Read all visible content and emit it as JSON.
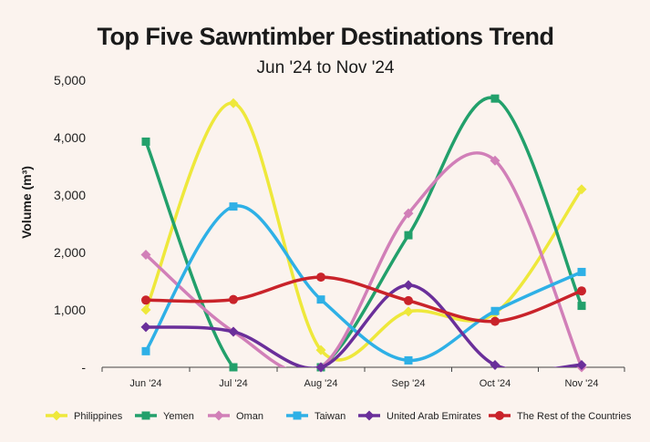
{
  "chart_data": {
    "type": "line",
    "title": "Top Five Sawntimber Destinations Trend",
    "subtitle": "Jun '24 to Nov '24",
    "ylabel": "Volume (m³)",
    "xlabel": "",
    "categories": [
      "Jun '24",
      "Jul '24",
      "Aug '24",
      "Sep '24",
      "Oct '24",
      "Nov '24"
    ],
    "ylim": [
      0,
      5000
    ],
    "yticks": [
      0,
      1000,
      2000,
      3000,
      4000,
      5000
    ],
    "ytick_labels": [
      "-",
      "1,000",
      "2,000",
      "3,000",
      "4,000",
      "5,000"
    ],
    "legend_position": "bottom",
    "grid": false,
    "series": [
      {
        "name": "Philippines",
        "color": "#eee83b",
        "marker": "diamond",
        "values": [
          1000,
          4600,
          300,
          970,
          940,
          3100
        ]
      },
      {
        "name": "Yemen",
        "color": "#22a06b",
        "marker": "square",
        "values": [
          3930,
          0,
          0,
          2300,
          4680,
          1070
        ]
      },
      {
        "name": "Oman",
        "color": "#d17fb8",
        "marker": "diamond",
        "values": [
          1960,
          620,
          0,
          2680,
          3600,
          0
        ]
      },
      {
        "name": "Taiwan",
        "color": "#2eb0e6",
        "marker": "square",
        "values": [
          280,
          2800,
          1180,
          120,
          980,
          1660
        ]
      },
      {
        "name": "United Arab Emirates",
        "color": "#6a2f9a",
        "marker": "diamond",
        "values": [
          700,
          620,
          0,
          1430,
          40,
          40
        ]
      },
      {
        "name": "The Rest of the Countries",
        "color": "#c9232a",
        "marker": "circle",
        "values": [
          1170,
          1180,
          1570,
          1160,
          800,
          1330
        ]
      }
    ]
  }
}
